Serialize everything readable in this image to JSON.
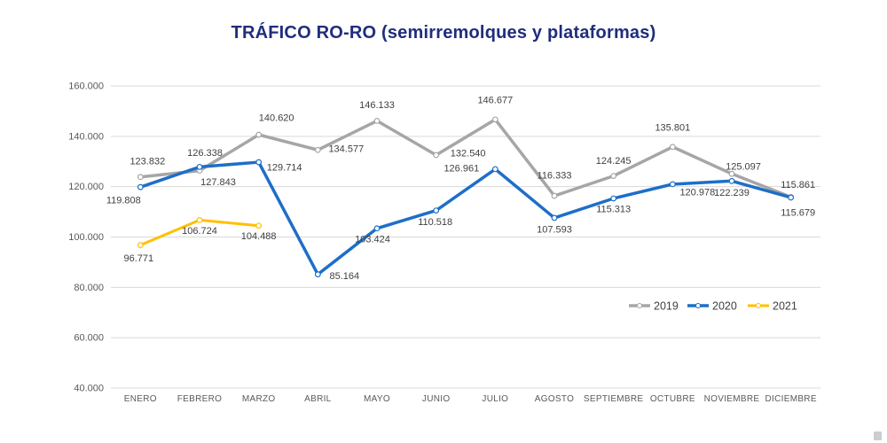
{
  "title": "TRÁFICO RO-RO (semirremolques y plataformas)",
  "colors": {
    "title_text": "#1F2D7C",
    "gridline": "#D9D9D9",
    "axis_text": "#595959",
    "data_label_text": "#404040",
    "legend_text": "#404040",
    "background": "#FFFFFF",
    "resize_handle": "#CDCDCD",
    "series_2019": "#A6A6A6",
    "series_2020": "#1E6EC8",
    "series_2021": "#FFC000"
  },
  "chart_data": {
    "type": "line",
    "title": "TRÁFICO RO-RO (semirremolques y plataformas)",
    "categories": [
      "ENERO",
      "FEBRERO",
      "MARZO",
      "ABRIL",
      "MAYO",
      "JUNIO",
      "JULIO",
      "AGOSTO",
      "SEPTIEMBRE",
      "OCTUBRE",
      "NOVIEMBRE",
      "DICIEMBRE"
    ],
    "series": [
      {
        "name": "2019",
        "color": "#A6A6A6",
        "stroke_width": 3.5,
        "values": [
          123832,
          126338,
          140620,
          134577,
          146133,
          132540,
          146677,
          116333,
          124245,
          135801,
          125097,
          115861
        ],
        "labels": [
          "123.832",
          "126.338",
          "140.620",
          "134.577",
          "146.133",
          "132.540",
          "146.677",
          "116.333",
          "124.245",
          "135.801",
          "125.097",
          "115.861"
        ],
        "label_offsets": [
          [
            8,
            -18
          ],
          [
            6,
            -20
          ],
          [
            20,
            -19
          ],
          [
            32,
            -1
          ],
          [
            0,
            -18
          ],
          [
            36,
            -2
          ],
          [
            0,
            -22
          ],
          [
            0,
            -23
          ],
          [
            0,
            -17
          ],
          [
            0,
            -22
          ],
          [
            13,
            -8
          ],
          [
            8,
            -14
          ]
        ]
      },
      {
        "name": "2020",
        "color": "#1E6EC8",
        "stroke_width": 3.5,
        "values": [
          119808,
          127843,
          129714,
          85164,
          103424,
          110518,
          126961,
          107593,
          115313,
          120978,
          122239,
          115679
        ],
        "labels": [
          "119.808",
          "127.843",
          "129.714",
          "85.164",
          "103.424",
          "110.518",
          "126.961",
          "107.593",
          "115.313",
          "120.978",
          "122.239",
          "115.679"
        ],
        "label_offsets": [
          [
            -19,
            15
          ],
          [
            21,
            17
          ],
          [
            29,
            6
          ],
          [
            30,
            2
          ],
          [
            -5,
            12
          ],
          [
            -1,
            13
          ],
          [
            -38,
            -1
          ],
          [
            0,
            13
          ],
          [
            0,
            12
          ],
          [
            28,
            9
          ],
          [
            0,
            13
          ],
          [
            8,
            17
          ]
        ]
      },
      {
        "name": "2021",
        "color": "#FFC000",
        "stroke_width": 3,
        "values": [
          96771,
          106724,
          104488
        ],
        "labels": [
          "96.771",
          "106.724",
          "104.488"
        ],
        "label_offsets": [
          [
            -2,
            15
          ],
          [
            0,
            12
          ],
          [
            0,
            12
          ]
        ]
      }
    ],
    "ylim": [
      40000,
      160000
    ],
    "ytick_step": 20000,
    "ytick_labels": [
      "160.000",
      "140.000",
      "120.000",
      "100.000",
      "80.000",
      "60.000",
      "40.000"
    ],
    "grid": true,
    "legend_position": "inside-right-middle",
    "legend": [
      "2019",
      "2020",
      "2021"
    ]
  }
}
